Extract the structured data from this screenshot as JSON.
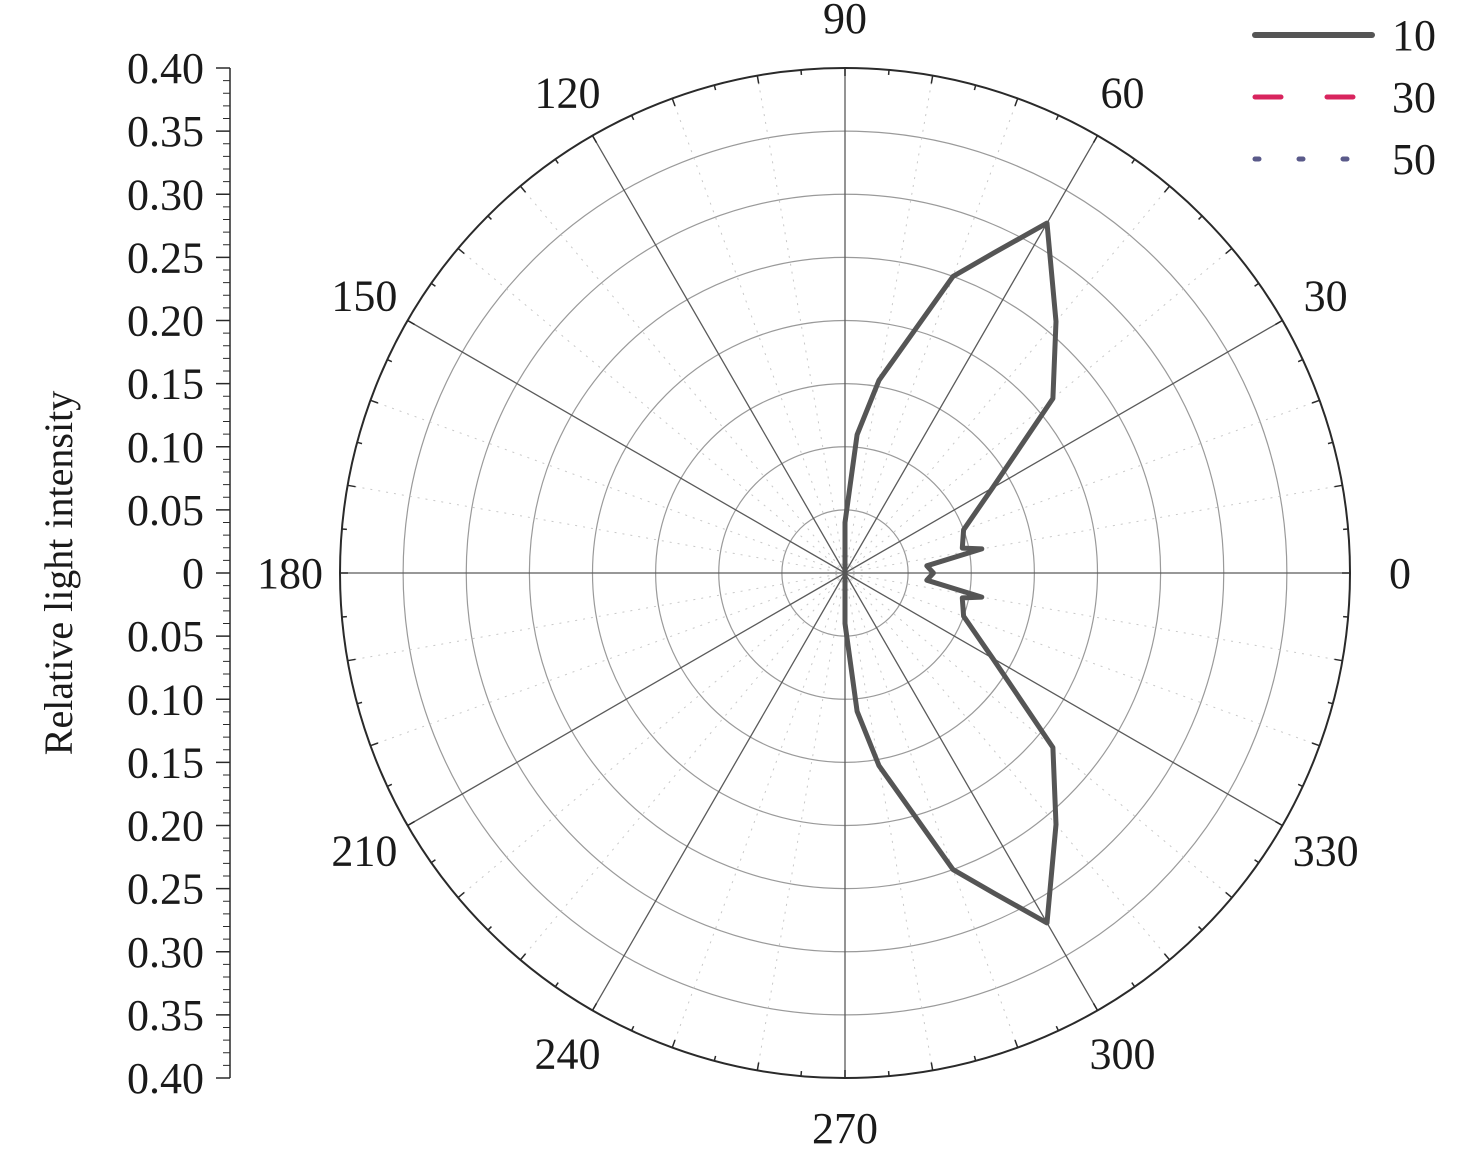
{
  "chart_data": {
    "type": "polar-line",
    "ylabel": "Relative light intensity",
    "radial_axis": {
      "range": [
        0,
        0.4
      ],
      "tick_labels_upper": [
        "0.40",
        "0.35",
        "0.30",
        "0.25",
        "0.20",
        "0.15",
        "0.10",
        "0.05",
        "0"
      ],
      "tick_labels_lower": [
        "0.05",
        "0.10",
        "0.15",
        "0.20",
        "0.25",
        "0.30",
        "0.35",
        "0.40"
      ],
      "ring_step": 0.05
    },
    "angular_axis": {
      "unit": "degrees",
      "tick_labels": [
        "0",
        "30",
        "60",
        "90",
        "120",
        "150",
        "180",
        "210",
        "240",
        "270",
        "300",
        "330"
      ],
      "spoke_step": 30,
      "minor_step": 10
    },
    "grid": true,
    "legend_position": "top-right",
    "series": [
      {
        "name": "10",
        "color": "#555555",
        "style": "solid",
        "points": [
          [
            0,
            0.07
          ],
          [
            5,
            0.065
          ],
          [
            10,
            0.11
          ],
          [
            12,
            0.095
          ],
          [
            20,
            0.1
          ],
          [
            30,
            0.135
          ],
          [
            40,
            0.215
          ],
          [
            50,
            0.26
          ],
          [
            60,
            0.32
          ],
          [
            65,
            0.28
          ],
          [
            70,
            0.25
          ],
          [
            80,
            0.155
          ],
          [
            85,
            0.11
          ],
          [
            90,
            0.04
          ],
          [
            180,
            0.0
          ],
          [
            270,
            0.04
          ],
          [
            275,
            0.11
          ],
          [
            280,
            0.155
          ],
          [
            290,
            0.25
          ],
          [
            295,
            0.28
          ],
          [
            300,
            0.32
          ],
          [
            310,
            0.26
          ],
          [
            320,
            0.215
          ],
          [
            330,
            0.135
          ],
          [
            340,
            0.1
          ],
          [
            348,
            0.095
          ],
          [
            350,
            0.11
          ],
          [
            355,
            0.065
          ],
          [
            360,
            0.07
          ]
        ]
      },
      {
        "name": "30",
        "color": "#d8245e",
        "style": "dashed",
        "points": [
          [
            0,
            0.07
          ],
          [
            5,
            0.065
          ],
          [
            10,
            0.11
          ],
          [
            12,
            0.095
          ],
          [
            20,
            0.1
          ],
          [
            30,
            0.135
          ],
          [
            40,
            0.215
          ],
          [
            50,
            0.26
          ],
          [
            60,
            0.32
          ],
          [
            65,
            0.28
          ],
          [
            70,
            0.25
          ],
          [
            80,
            0.155
          ],
          [
            85,
            0.11
          ],
          [
            90,
            0.04
          ],
          [
            180,
            0.0
          ],
          [
            270,
            0.04
          ],
          [
            275,
            0.11
          ],
          [
            280,
            0.155
          ],
          [
            290,
            0.25
          ],
          [
            295,
            0.28
          ],
          [
            300,
            0.32
          ],
          [
            310,
            0.26
          ],
          [
            320,
            0.215
          ],
          [
            330,
            0.135
          ],
          [
            340,
            0.1
          ],
          [
            348,
            0.095
          ],
          [
            350,
            0.11
          ],
          [
            355,
            0.065
          ],
          [
            360,
            0.07
          ]
        ]
      },
      {
        "name": "50",
        "color": "#5a5a8a",
        "style": "dotted",
        "points": [
          [
            0,
            0.07
          ],
          [
            5,
            0.065
          ],
          [
            10,
            0.11
          ],
          [
            12,
            0.095
          ],
          [
            20,
            0.1
          ],
          [
            30,
            0.135
          ],
          [
            40,
            0.215
          ],
          [
            50,
            0.26
          ],
          [
            60,
            0.32
          ],
          [
            65,
            0.28
          ],
          [
            70,
            0.25
          ],
          [
            80,
            0.155
          ],
          [
            85,
            0.11
          ],
          [
            90,
            0.04
          ],
          [
            180,
            0.0
          ],
          [
            270,
            0.04
          ],
          [
            275,
            0.11
          ],
          [
            280,
            0.155
          ],
          [
            290,
            0.25
          ],
          [
            295,
            0.28
          ],
          [
            300,
            0.32
          ],
          [
            310,
            0.26
          ],
          [
            320,
            0.215
          ],
          [
            330,
            0.135
          ],
          [
            340,
            0.1
          ],
          [
            348,
            0.095
          ],
          [
            350,
            0.11
          ],
          [
            355,
            0.065
          ],
          [
            360,
            0.07
          ]
        ]
      }
    ]
  }
}
